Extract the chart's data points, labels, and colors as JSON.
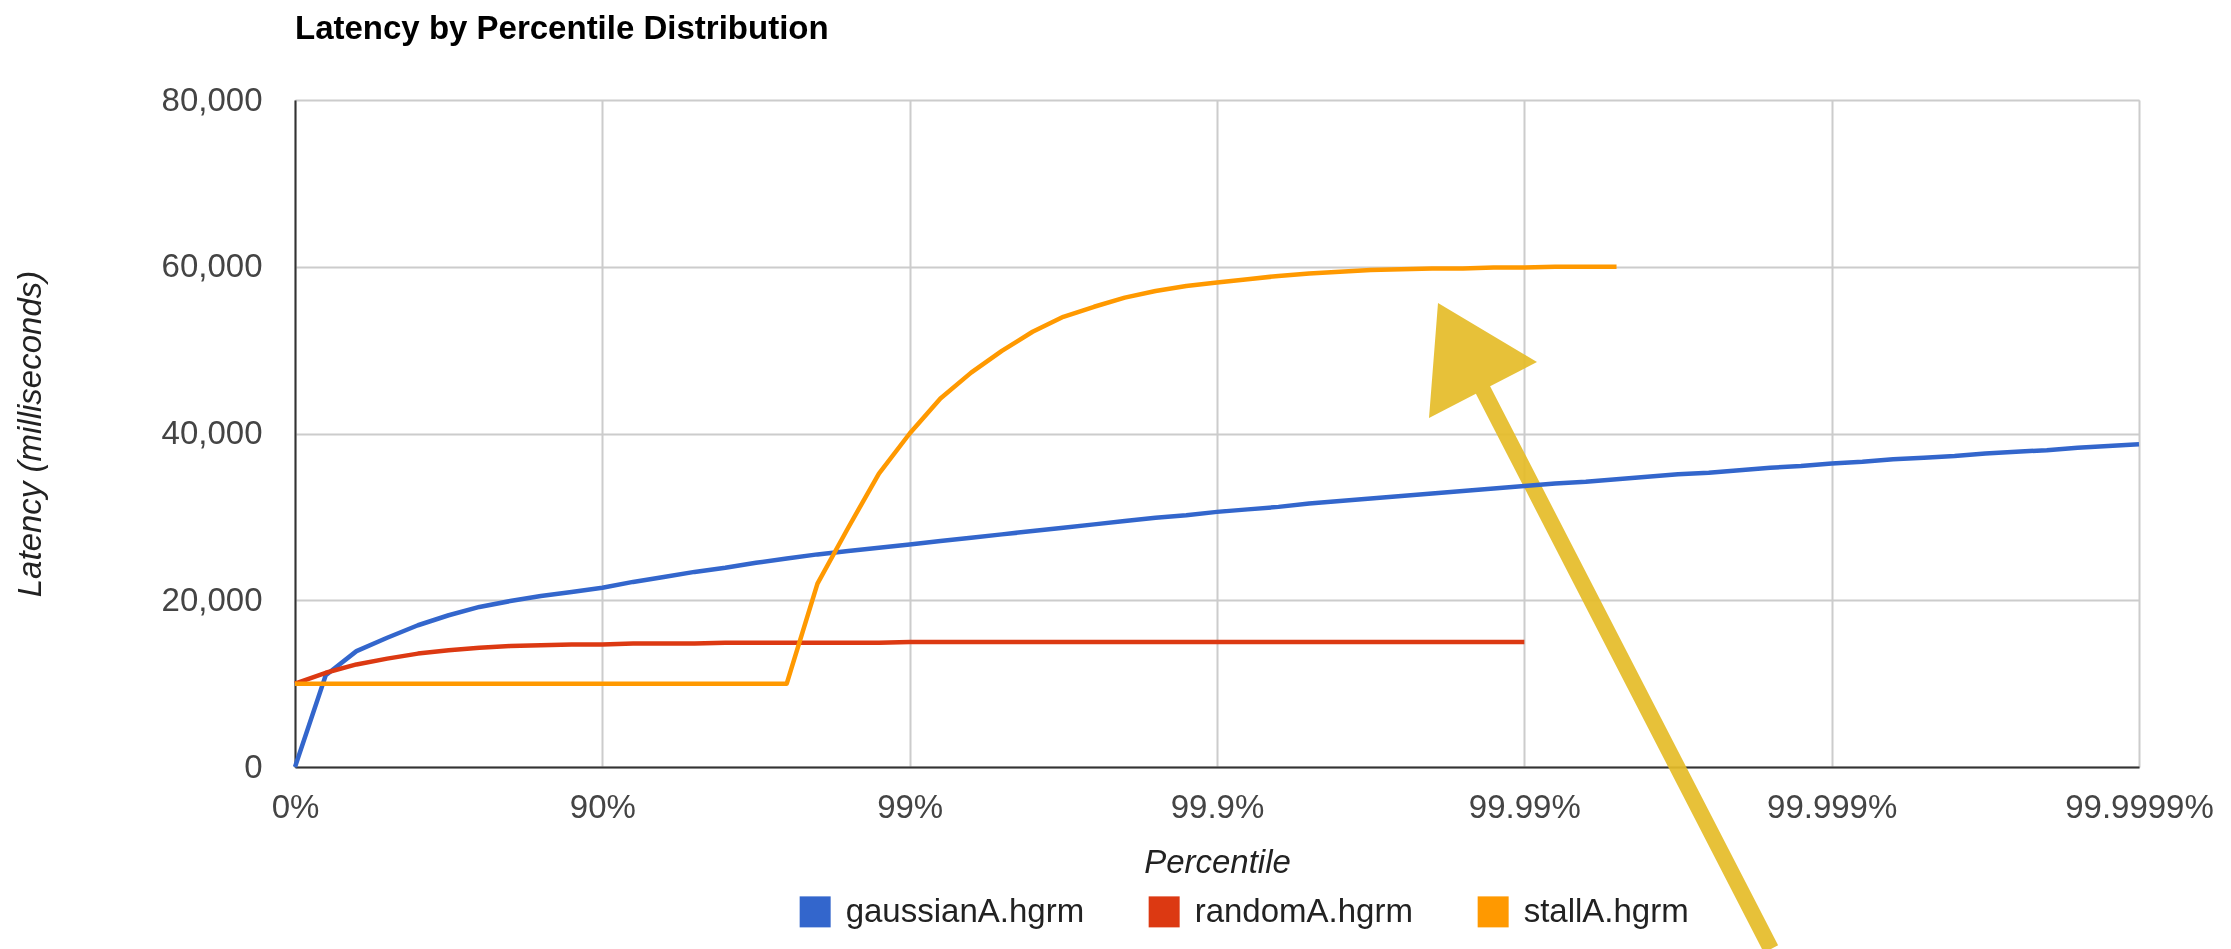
{
  "chart_data": {
    "type": "line",
    "title": "Latency by Percentile Distribution",
    "xlabel": "Percentile",
    "ylabel": "Latency (milliseconds)",
    "categories": [
      "0%",
      null,
      null,
      null,
      null,
      null,
      null,
      null,
      null,
      null,
      "90%",
      null,
      null,
      null,
      null,
      null,
      null,
      null,
      null,
      null,
      "99%",
      null,
      null,
      null,
      null,
      null,
      null,
      null,
      null,
      null,
      "99.9%",
      null,
      null,
      null,
      null,
      null,
      null,
      null,
      null,
      null,
      "99.99%",
      null,
      null,
      null,
      null,
      null,
      null,
      null,
      null,
      null,
      "99.999%",
      null,
      null,
      null,
      null,
      null,
      null,
      null,
      null,
      null,
      "99.9999%"
    ],
    "ylim": [
      0,
      80000
    ],
    "yticks": [
      {
        "value": 0,
        "label": "0"
      },
      {
        "value": 20000,
        "label": "20,000"
      },
      {
        "value": 40000,
        "label": "40,000"
      },
      {
        "value": 60000,
        "label": "60,000"
      },
      {
        "value": 80000,
        "label": "80,000"
      }
    ],
    "grid": true,
    "legend": "bottom",
    "series": [
      {
        "name": "gaussianA.hgrm",
        "color": "#3366cc",
        "values": [
          0,
          11000,
          13900,
          15500,
          17000,
          18200,
          19200,
          19900,
          20500,
          21000,
          21500,
          22200,
          22800,
          23400,
          23900,
          24500,
          25000,
          25500,
          25900,
          26300,
          26700,
          27100,
          27500,
          27900,
          28300,
          28700,
          29100,
          29500,
          29900,
          30200,
          30600,
          30900,
          31200,
          31600,
          31900,
          32200,
          32500,
          32800,
          33100,
          33400,
          33700,
          34000,
          34200,
          34500,
          34800,
          35100,
          35300,
          35600,
          35900,
          36100,
          36400,
          36600,
          36900,
          37100,
          37300,
          37600,
          37800,
          38000,
          38300,
          38500,
          38700
        ]
      },
      {
        "name": "randomA.hgrm",
        "color": "#dc3912",
        "values": [
          10000,
          11300,
          12300,
          13000,
          13600,
          14000,
          14300,
          14500,
          14600,
          14700,
          14700,
          14800,
          14800,
          14800,
          14900,
          14900,
          14900,
          14900,
          14900,
          14900,
          15000,
          15000,
          15000,
          15000,
          15000,
          15000,
          15000,
          15000,
          15000,
          15000,
          15000,
          15000,
          15000,
          15000,
          15000,
          15000,
          15000,
          15000,
          15000,
          15000,
          15000,
          null,
          null,
          null,
          null,
          null,
          null,
          null,
          null,
          null,
          null,
          null,
          null,
          null,
          null,
          null,
          null,
          null,
          null,
          null,
          null
        ]
      },
      {
        "name": "stallA.hgrm",
        "color": "#ff9900",
        "values": [
          10000,
          10000,
          10000,
          10000,
          10000,
          10000,
          10000,
          10000,
          10000,
          10000,
          10000,
          10000,
          10000,
          10000,
          10000,
          10000,
          10000,
          22000,
          28700,
          35200,
          40000,
          44200,
          47300,
          49900,
          52200,
          54000,
          55200,
          56300,
          57100,
          57700,
          58100,
          58500,
          58900,
          59200,
          59400,
          59600,
          59700,
          59800,
          59800,
          59900,
          59900,
          60000,
          60000,
          60000,
          null,
          null,
          null,
          null,
          null,
          null,
          null,
          null,
          null,
          null,
          null,
          null,
          null,
          null,
          null,
          null,
          null
        ]
      }
    ]
  }
}
